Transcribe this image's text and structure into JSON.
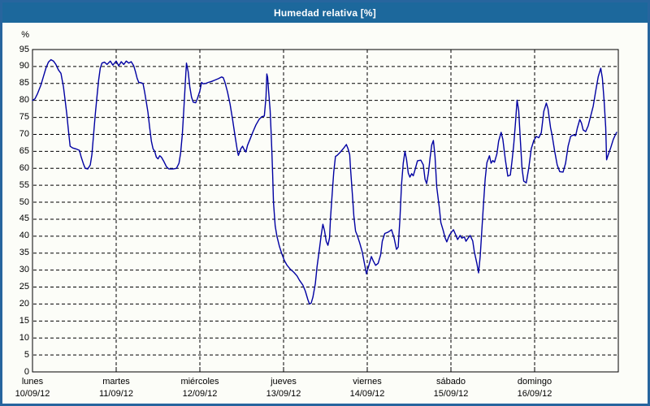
{
  "window": {
    "title": "Humedad relativa [%]"
  },
  "colors": {
    "title_bar": "#1c689c",
    "title_text": "#ffffff",
    "outer_border": "#27659e",
    "background": "#fcfdf8",
    "plot_border": "#000000",
    "grid": "#000000",
    "line": "#0000a2",
    "label_text": "#000000"
  },
  "chart_data": {
    "type": "line",
    "title": "Humedad relativa [%]",
    "ylabel": "%",
    "ylim": [
      0,
      95
    ],
    "y_ticks": [
      0,
      5,
      10,
      15,
      20,
      25,
      30,
      35,
      40,
      45,
      50,
      55,
      60,
      65,
      70,
      75,
      80,
      85,
      90,
      95
    ],
    "xlim_days": [
      0,
      7
    ],
    "grid": "dashed",
    "legend": "none",
    "x_axis": {
      "day_labels": [
        "lunes",
        "martes",
        "miércoles",
        "jueves",
        "viernes",
        "sábado",
        "domingo"
      ],
      "date_labels": [
        "10/09/12",
        "11/09/12",
        "12/09/12",
        "13/09/12",
        "14/09/12",
        "15/09/12",
        "16/09/12"
      ]
    },
    "series": [
      {
        "name": "Humedad relativa",
        "unit": "%",
        "points": [
          [
            0.0,
            80
          ],
          [
            0.03,
            80.5
          ],
          [
            0.06,
            82
          ],
          [
            0.1,
            84.5
          ],
          [
            0.13,
            87
          ],
          [
            0.16,
            89.5
          ],
          [
            0.19,
            91.3
          ],
          [
            0.22,
            92
          ],
          [
            0.25,
            91.6
          ],
          [
            0.28,
            90.6
          ],
          [
            0.31,
            89
          ],
          [
            0.34,
            88
          ],
          [
            0.37,
            84
          ],
          [
            0.39,
            80
          ],
          [
            0.41,
            76
          ],
          [
            0.43,
            71
          ],
          [
            0.45,
            66.5
          ],
          [
            0.48,
            66
          ],
          [
            0.52,
            65.7
          ],
          [
            0.56,
            65.3
          ],
          [
            0.58,
            63.5
          ],
          [
            0.61,
            61.2
          ],
          [
            0.63,
            60
          ],
          [
            0.66,
            59.8
          ],
          [
            0.69,
            61
          ],
          [
            0.71,
            64
          ],
          [
            0.73,
            70
          ],
          [
            0.75,
            76
          ],
          [
            0.77,
            81
          ],
          [
            0.79,
            86
          ],
          [
            0.81,
            89.5
          ],
          [
            0.83,
            91
          ],
          [
            0.86,
            91.3
          ],
          [
            0.89,
            90.6
          ],
          [
            0.93,
            91.6
          ],
          [
            0.96,
            90.4
          ],
          [
            1.0,
            91.6
          ],
          [
            1.03,
            90.2
          ],
          [
            1.06,
            91.4
          ],
          [
            1.09,
            90.6
          ],
          [
            1.12,
            91.6
          ],
          [
            1.15,
            91
          ],
          [
            1.18,
            91.4
          ],
          [
            1.21,
            90.2
          ],
          [
            1.23,
            88.5
          ],
          [
            1.25,
            86.5
          ],
          [
            1.27,
            85.3
          ],
          [
            1.3,
            85.2
          ],
          [
            1.32,
            85
          ],
          [
            1.34,
            82.5
          ],
          [
            1.36,
            79.5
          ],
          [
            1.38,
            76.5
          ],
          [
            1.4,
            72
          ],
          [
            1.42,
            68
          ],
          [
            1.44,
            65.8
          ],
          [
            1.46,
            65
          ],
          [
            1.48,
            63.3
          ],
          [
            1.5,
            62.8
          ],
          [
            1.52,
            63.7
          ],
          [
            1.54,
            63.3
          ],
          [
            1.57,
            62
          ],
          [
            1.6,
            60.5
          ],
          [
            1.63,
            59.8
          ],
          [
            1.68,
            59.8
          ],
          [
            1.72,
            60
          ],
          [
            1.75,
            61.5
          ],
          [
            1.77,
            64.5
          ],
          [
            1.79,
            70
          ],
          [
            1.81,
            78
          ],
          [
            1.83,
            87
          ],
          [
            1.84,
            91
          ],
          [
            1.86,
            88.5
          ],
          [
            1.88,
            84
          ],
          [
            1.9,
            81
          ],
          [
            1.92,
            79.5
          ],
          [
            1.95,
            79.3
          ],
          [
            1.97,
            80.5
          ],
          [
            2.0,
            82.8
          ],
          [
            2.02,
            85.3
          ],
          [
            2.04,
            84.9
          ],
          [
            2.07,
            85
          ],
          [
            2.1,
            85.3
          ],
          [
            2.14,
            85.6
          ],
          [
            2.18,
            86
          ],
          [
            2.22,
            86.4
          ],
          [
            2.26,
            86.9
          ],
          [
            2.28,
            86.7
          ],
          [
            2.3,
            85.3
          ],
          [
            2.33,
            82.5
          ],
          [
            2.36,
            79
          ],
          [
            2.39,
            74.5
          ],
          [
            2.42,
            69.5
          ],
          [
            2.45,
            64.8
          ],
          [
            2.46,
            63.8
          ],
          [
            2.49,
            65.8
          ],
          [
            2.51,
            66.5
          ],
          [
            2.53,
            65.5
          ],
          [
            2.55,
            64.8
          ],
          [
            2.57,
            66.8
          ],
          [
            2.6,
            68.6
          ],
          [
            2.63,
            70.5
          ],
          [
            2.67,
            72.8
          ],
          [
            2.71,
            74.5
          ],
          [
            2.74,
            75.2
          ],
          [
            2.77,
            75.4
          ],
          [
            2.79,
            81
          ],
          [
            2.8,
            87.8
          ],
          [
            2.81,
            86.8
          ],
          [
            2.82,
            83
          ],
          [
            2.84,
            77
          ],
          [
            2.85,
            71
          ],
          [
            2.86,
            65
          ],
          [
            2.87,
            58
          ],
          [
            2.88,
            50
          ],
          [
            2.9,
            43
          ],
          [
            2.92,
            40
          ],
          [
            2.95,
            37
          ],
          [
            2.98,
            34.8
          ],
          [
            3.01,
            32.8
          ],
          [
            3.04,
            31.5
          ],
          [
            3.08,
            30.3
          ],
          [
            3.12,
            29.4
          ],
          [
            3.16,
            28.3
          ],
          [
            3.19,
            27
          ],
          [
            3.23,
            25.6
          ],
          [
            3.26,
            23.8
          ],
          [
            3.29,
            21.3
          ],
          [
            3.31,
            20
          ],
          [
            3.33,
            20.3
          ],
          [
            3.35,
            22
          ],
          [
            3.38,
            26
          ],
          [
            3.4,
            31
          ],
          [
            3.43,
            36.5
          ],
          [
            3.45,
            40.5
          ],
          [
            3.47,
            43.5
          ],
          [
            3.49,
            41.5
          ],
          [
            3.51,
            38.5
          ],
          [
            3.53,
            37.3
          ],
          [
            3.55,
            39.5
          ],
          [
            3.56,
            45
          ],
          [
            3.58,
            52
          ],
          [
            3.6,
            59
          ],
          [
            3.62,
            63.5
          ],
          [
            3.64,
            63.8
          ],
          [
            3.68,
            64.8
          ],
          [
            3.72,
            66
          ],
          [
            3.75,
            67
          ],
          [
            3.77,
            65.8
          ],
          [
            3.79,
            64
          ],
          [
            3.8,
            60
          ],
          [
            3.82,
            53
          ],
          [
            3.84,
            46
          ],
          [
            3.86,
            41.5
          ],
          [
            3.88,
            40.3
          ],
          [
            3.91,
            38
          ],
          [
            3.94,
            35.4
          ],
          [
            3.97,
            31.5
          ],
          [
            3.99,
            28.9
          ],
          [
            4.02,
            31.5
          ],
          [
            4.05,
            34
          ],
          [
            4.07,
            32.8
          ],
          [
            4.1,
            31.4
          ],
          [
            4.13,
            32
          ],
          [
            4.16,
            34.5
          ],
          [
            4.18,
            38.5
          ],
          [
            4.21,
            40.8
          ],
          [
            4.25,
            41.2
          ],
          [
            4.29,
            41.9
          ],
          [
            4.32,
            39.5
          ],
          [
            4.35,
            36.1
          ],
          [
            4.37,
            36.8
          ],
          [
            4.39,
            45
          ],
          [
            4.41,
            55.3
          ],
          [
            4.43,
            61.5
          ],
          [
            4.45,
            65
          ],
          [
            4.47,
            62.5
          ],
          [
            4.49,
            58.6
          ],
          [
            4.51,
            57.4
          ],
          [
            4.53,
            58.4
          ],
          [
            4.55,
            57.8
          ],
          [
            4.57,
            59.5
          ],
          [
            4.6,
            62.2
          ],
          [
            4.64,
            62.4
          ],
          [
            4.67,
            61
          ],
          [
            4.69,
            56.8
          ],
          [
            4.71,
            55.5
          ],
          [
            4.73,
            58.5
          ],
          [
            4.75,
            63
          ],
          [
            4.77,
            66.8
          ],
          [
            4.79,
            68.2
          ],
          [
            4.81,
            63.5
          ],
          [
            4.83,
            54.5
          ],
          [
            4.86,
            48.6
          ],
          [
            4.88,
            44
          ],
          [
            4.91,
            41.5
          ],
          [
            4.93,
            39.5
          ],
          [
            4.95,
            38.3
          ],
          [
            4.98,
            40.2
          ],
          [
            5.01,
            41.3
          ],
          [
            5.03,
            41.9
          ],
          [
            5.06,
            40.2
          ],
          [
            5.08,
            39
          ],
          [
            5.11,
            40.2
          ],
          [
            5.13,
            39.4
          ],
          [
            5.16,
            39.8
          ],
          [
            5.18,
            38.5
          ],
          [
            5.21,
            39.6
          ],
          [
            5.23,
            40.2
          ],
          [
            5.26,
            38.6
          ],
          [
            5.28,
            35.4
          ],
          [
            5.31,
            32
          ],
          [
            5.33,
            29.2
          ],
          [
            5.35,
            34
          ],
          [
            5.37,
            42
          ],
          [
            5.39,
            50
          ],
          [
            5.41,
            57
          ],
          [
            5.43,
            61.7
          ],
          [
            5.46,
            63.7
          ],
          [
            5.48,
            61.5
          ],
          [
            5.5,
            62.3
          ],
          [
            5.52,
            61.8
          ],
          [
            5.55,
            64.3
          ],
          [
            5.57,
            68
          ],
          [
            5.6,
            70.6
          ],
          [
            5.62,
            68.5
          ],
          [
            5.65,
            62.5
          ],
          [
            5.68,
            57.7
          ],
          [
            5.71,
            58
          ],
          [
            5.73,
            62.2
          ],
          [
            5.75,
            67
          ],
          [
            5.77,
            73
          ],
          [
            5.79,
            80.1
          ],
          [
            5.81,
            77
          ],
          [
            5.83,
            68
          ],
          [
            5.85,
            60
          ],
          [
            5.87,
            56.2
          ],
          [
            5.9,
            55.7
          ],
          [
            5.93,
            60.1
          ],
          [
            5.96,
            65.8
          ],
          [
            5.99,
            68.2
          ],
          [
            6.02,
            69.4
          ],
          [
            6.05,
            69
          ],
          [
            6.08,
            70.5
          ],
          [
            6.11,
            76.8
          ],
          [
            6.14,
            79.2
          ],
          [
            6.16,
            77.5
          ],
          [
            6.19,
            72
          ],
          [
            6.21,
            69.6
          ],
          [
            6.24,
            65
          ],
          [
            6.27,
            61
          ],
          [
            6.3,
            59
          ],
          [
            6.34,
            58.9
          ],
          [
            6.37,
            61.5
          ],
          [
            6.4,
            66.5
          ],
          [
            6.43,
            69.4
          ],
          [
            6.46,
            69.8
          ],
          [
            6.49,
            69.6
          ],
          [
            6.51,
            71.8
          ],
          [
            6.54,
            74.4
          ],
          [
            6.56,
            73.3
          ],
          [
            6.58,
            71.3
          ],
          [
            6.61,
            70.8
          ],
          [
            6.64,
            72.5
          ],
          [
            6.67,
            75.4
          ],
          [
            6.7,
            78.3
          ],
          [
            6.73,
            82.8
          ],
          [
            6.76,
            87
          ],
          [
            6.79,
            89.5
          ],
          [
            6.81,
            86.5
          ],
          [
            6.83,
            80
          ],
          [
            6.85,
            72
          ],
          [
            6.86,
            62.5
          ],
          [
            6.88,
            64
          ],
          [
            6.91,
            66.1
          ],
          [
            6.94,
            68.5
          ],
          [
            6.96,
            69.6
          ],
          [
            6.98,
            70.6
          ]
        ]
      }
    ]
  }
}
